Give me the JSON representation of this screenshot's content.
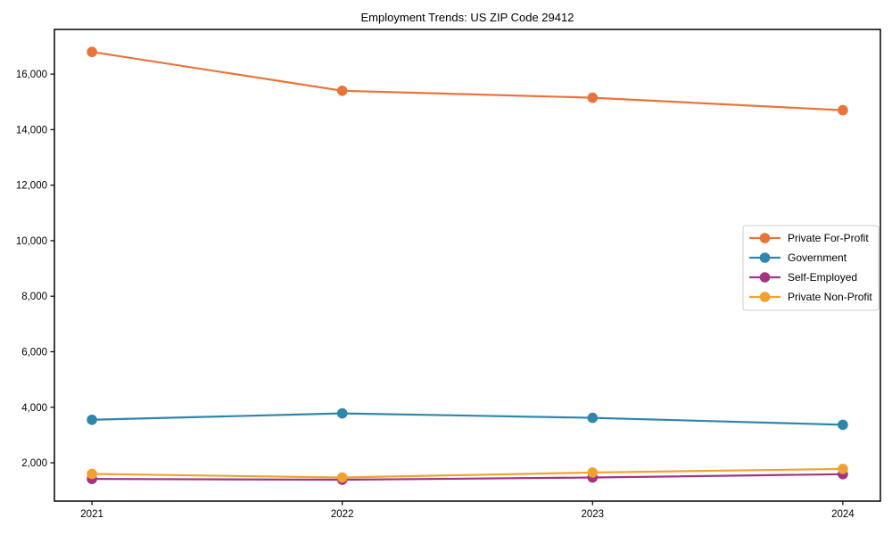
{
  "chart_data": {
    "type": "line",
    "title": "Employment Trends: US ZIP Code 29412",
    "xlabel": "",
    "ylabel": "",
    "categories": [
      "2021",
      "2022",
      "2023",
      "2024"
    ],
    "series": [
      {
        "name": "Private For-Profit",
        "color": "#E8743B",
        "values": [
          16800,
          15400,
          15150,
          14700
        ]
      },
      {
        "name": "Government",
        "color": "#2E86AB",
        "values": [
          3550,
          3780,
          3620,
          3370
        ]
      },
      {
        "name": "Self-Employed",
        "color": "#A23582",
        "values": [
          1420,
          1390,
          1470,
          1590
        ]
      },
      {
        "name": "Private Non-Profit",
        "color": "#F0A132",
        "values": [
          1600,
          1470,
          1650,
          1780
        ]
      }
    ],
    "yticks": [
      2000,
      4000,
      6000,
      8000,
      10000,
      12000,
      14000,
      16000
    ],
    "ytick_labels": [
      "2,000",
      "4,000",
      "6,000",
      "8,000",
      "10,000",
      "12,000",
      "14,000",
      "16,000"
    ],
    "ylim": [
      620,
      17610
    ],
    "grid": false,
    "marker": "circle",
    "legend_position": "right",
    "plot_background": "#ffffff",
    "axis_color": "#000000",
    "legend_border_color": "#cccccc"
  }
}
